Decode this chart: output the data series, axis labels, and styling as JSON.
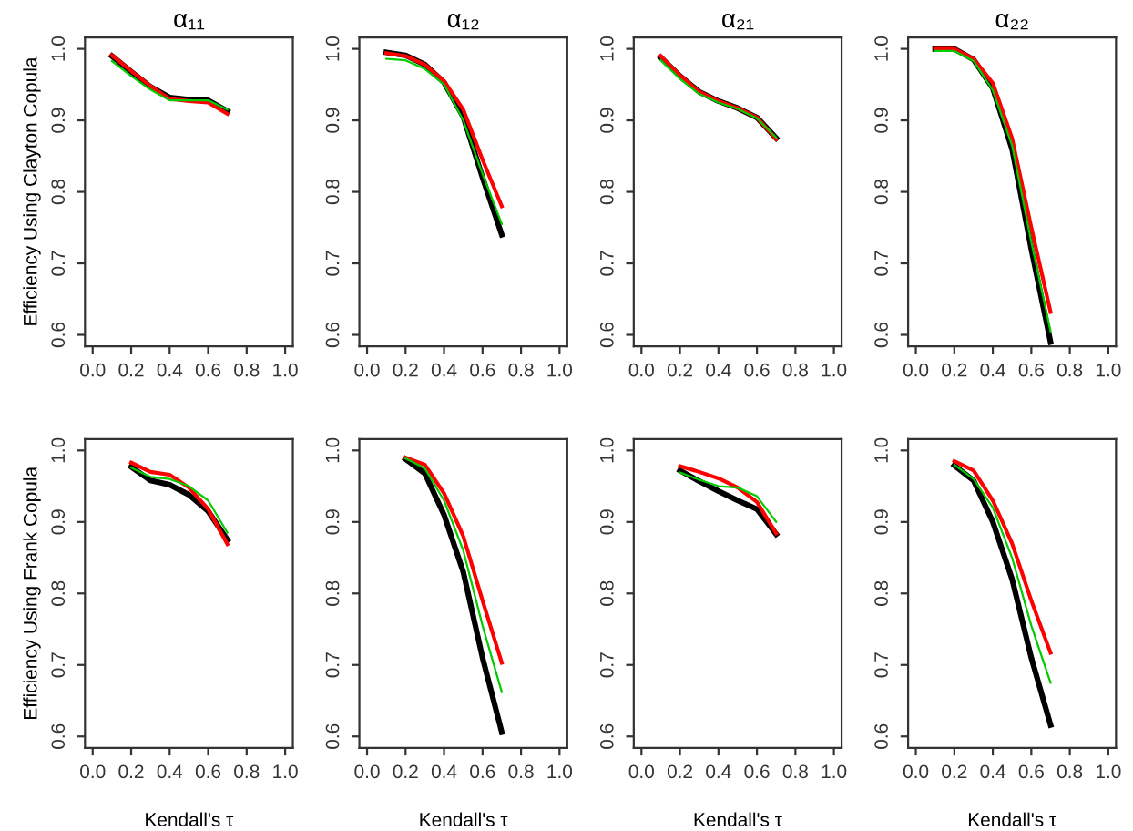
{
  "chart_data": [
    {
      "type": "line",
      "title": "α₁₁",
      "ylabel": "Efficiency Using Clayton Copula",
      "x": [
        0.1,
        0.2,
        0.3,
        0.4,
        0.5,
        0.6,
        0.7
      ],
      "xlim": [
        -0.04,
        1.04
      ],
      "ylim": [
        0.584,
        1.016
      ],
      "xticks": [
        {
          "value": 0,
          "label": "0.0"
        },
        {
          "value": 0.2,
          "label": "0.2"
        },
        {
          "value": 0.4,
          "label": "0.4"
        },
        {
          "value": 0.6,
          "label": "0.6"
        },
        {
          "value": 0.8,
          "label": "0.8"
        },
        {
          "value": 1,
          "label": "1.0"
        }
      ],
      "yticks": [
        {
          "value": 0.6,
          "label": "0.6"
        },
        {
          "value": 0.7,
          "label": "0.7"
        },
        {
          "value": 0.8,
          "label": "0.8"
        },
        {
          "value": 0.9,
          "label": "0.9"
        },
        {
          "value": 1,
          "label": "1.0"
        }
      ],
      "series": [
        {
          "color": "#000000",
          "values": [
            0.99,
            0.968,
            0.947,
            0.932,
            0.929,
            0.928,
            0.913
          ]
        },
        {
          "color": "#ff0000",
          "values": [
            0.991,
            0.969,
            0.948,
            0.93,
            0.927,
            0.925,
            0.909
          ]
        },
        {
          "color": "#00cc00",
          "values": [
            0.983,
            0.962,
            0.943,
            0.928,
            0.928,
            0.928,
            0.915
          ]
        }
      ]
    },
    {
      "type": "line",
      "title": "α₁₂",
      "x": [
        0.1,
        0.2,
        0.3,
        0.4,
        0.5,
        0.6,
        0.7
      ],
      "xlim": [
        -0.04,
        1.04
      ],
      "ylim": [
        0.584,
        1.016
      ],
      "xticks": [
        {
          "value": 0,
          "label": "0.0"
        },
        {
          "value": 0.2,
          "label": "0.2"
        },
        {
          "value": 0.4,
          "label": "0.4"
        },
        {
          "value": 0.6,
          "label": "0.6"
        },
        {
          "value": 0.8,
          "label": "0.8"
        },
        {
          "value": 1,
          "label": "1.0"
        }
      ],
      "yticks": [
        {
          "value": 0.6,
          "label": "0.6"
        },
        {
          "value": 0.7,
          "label": "0.7"
        },
        {
          "value": 0.8,
          "label": "0.8"
        },
        {
          "value": 0.9,
          "label": "0.9"
        },
        {
          "value": 1,
          "label": "1.0"
        }
      ],
      "series": [
        {
          "color": "#000000",
          "values": [
            0.995,
            0.991,
            0.978,
            0.953,
            0.905,
            0.82,
            0.74
          ]
        },
        {
          "color": "#ff0000",
          "values": [
            0.994,
            0.99,
            0.978,
            0.955,
            0.915,
            0.845,
            0.78
          ]
        },
        {
          "color": "#00cc00",
          "values": [
            0.986,
            0.984,
            0.972,
            0.95,
            0.9,
            0.825,
            0.755
          ]
        }
      ]
    },
    {
      "type": "line",
      "title": "α₂₁",
      "x": [
        0.1,
        0.2,
        0.3,
        0.4,
        0.5,
        0.6,
        0.7
      ],
      "xlim": [
        -0.04,
        1.04
      ],
      "ylim": [
        0.584,
        1.016
      ],
      "xticks": [
        {
          "value": 0,
          "label": "0.0"
        },
        {
          "value": 0.2,
          "label": "0.2"
        },
        {
          "value": 0.4,
          "label": "0.4"
        },
        {
          "value": 0.6,
          "label": "0.6"
        },
        {
          "value": 0.8,
          "label": "0.8"
        },
        {
          "value": 1,
          "label": "1.0"
        }
      ],
      "yticks": [
        {
          "value": 0.6,
          "label": "0.6"
        },
        {
          "value": 0.7,
          "label": "0.7"
        },
        {
          "value": 0.8,
          "label": "0.8"
        },
        {
          "value": 0.9,
          "label": "0.9"
        },
        {
          "value": 1,
          "label": "1.0"
        }
      ],
      "series": [
        {
          "color": "#000000",
          "values": [
            0.988,
            0.962,
            0.94,
            0.927,
            0.917,
            0.904,
            0.875
          ]
        },
        {
          "color": "#ff0000",
          "values": [
            0.99,
            0.963,
            0.94,
            0.927,
            0.917,
            0.904,
            0.874
          ]
        },
        {
          "color": "#00cc00",
          "values": [
            0.984,
            0.958,
            0.937,
            0.925,
            0.916,
            0.903,
            0.876
          ]
        }
      ]
    },
    {
      "type": "line",
      "title": "α₂₂",
      "x": [
        0.1,
        0.2,
        0.3,
        0.4,
        0.5,
        0.6,
        0.7
      ],
      "xlim": [
        -0.04,
        1.04
      ],
      "ylim": [
        0.584,
        1.016
      ],
      "xticks": [
        {
          "value": 0,
          "label": "0.0"
        },
        {
          "value": 0.2,
          "label": "0.2"
        },
        {
          "value": 0.4,
          "label": "0.4"
        },
        {
          "value": 0.6,
          "label": "0.6"
        },
        {
          "value": 0.8,
          "label": "0.8"
        },
        {
          "value": 1,
          "label": "1.0"
        }
      ],
      "yticks": [
        {
          "value": 0.6,
          "label": "0.6"
        },
        {
          "value": 0.7,
          "label": "0.7"
        },
        {
          "value": 0.8,
          "label": "0.8"
        },
        {
          "value": 0.9,
          "label": "0.9"
        },
        {
          "value": 1,
          "label": "1.0"
        }
      ],
      "series": [
        {
          "color": "#000000",
          "values": [
            1.0,
            1.0,
            0.985,
            0.945,
            0.86,
            0.72,
            0.59
          ]
        },
        {
          "color": "#ff0000",
          "values": [
            1.0,
            1.0,
            0.986,
            0.952,
            0.875,
            0.75,
            0.632
          ]
        },
        {
          "color": "#00cc00",
          "values": [
            0.997,
            0.997,
            0.983,
            0.942,
            0.865,
            0.73,
            0.605
          ]
        }
      ]
    },
    {
      "type": "line",
      "ylabel": "Efficiency Using Frank Copula",
      "xlabel": "Kendall's τ",
      "x": [
        0.2,
        0.3,
        0.4,
        0.5,
        0.6,
        0.7
      ],
      "xlim": [
        -0.04,
        1.04
      ],
      "ylim": [
        0.584,
        1.016
      ],
      "xticks": [
        {
          "value": 0,
          "label": "0.0"
        },
        {
          "value": 0.2,
          "label": "0.2"
        },
        {
          "value": 0.4,
          "label": "0.4"
        },
        {
          "value": 0.6,
          "label": "0.6"
        },
        {
          "value": 0.8,
          "label": "0.8"
        },
        {
          "value": 1,
          "label": "1.0"
        }
      ],
      "yticks": [
        {
          "value": 0.6,
          "label": "0.6"
        },
        {
          "value": 0.7,
          "label": "0.7"
        },
        {
          "value": 0.8,
          "label": "0.8"
        },
        {
          "value": 0.9,
          "label": "0.9"
        },
        {
          "value": 1,
          "label": "1.0"
        }
      ],
      "series": [
        {
          "color": "#000000",
          "values": [
            0.977,
            0.958,
            0.952,
            0.938,
            0.915,
            0.875
          ]
        },
        {
          "color": "#ff0000",
          "values": [
            0.983,
            0.97,
            0.966,
            0.948,
            0.918,
            0.869
          ]
        },
        {
          "color": "#00cc00",
          "values": [
            0.976,
            0.963,
            0.96,
            0.95,
            0.93,
            0.885
          ]
        }
      ]
    },
    {
      "type": "line",
      "xlabel": "Kendall's τ",
      "x": [
        0.2,
        0.3,
        0.4,
        0.5,
        0.6,
        0.7
      ],
      "xlim": [
        -0.04,
        1.04
      ],
      "ylim": [
        0.584,
        1.016
      ],
      "xticks": [
        {
          "value": 0,
          "label": "0.0"
        },
        {
          "value": 0.2,
          "label": "0.2"
        },
        {
          "value": 0.4,
          "label": "0.4"
        },
        {
          "value": 0.6,
          "label": "0.6"
        },
        {
          "value": 0.8,
          "label": "0.8"
        },
        {
          "value": 1,
          "label": "1.0"
        }
      ],
      "yticks": [
        {
          "value": 0.6,
          "label": "0.6"
        },
        {
          "value": 0.7,
          "label": "0.7"
        },
        {
          "value": 0.8,
          "label": "0.8"
        },
        {
          "value": 0.9,
          "label": "0.9"
        },
        {
          "value": 1,
          "label": "1.0"
        }
      ],
      "series": [
        {
          "color": "#000000",
          "values": [
            0.988,
            0.968,
            0.91,
            0.83,
            0.71,
            0.606
          ]
        },
        {
          "color": "#ff0000",
          "values": [
            0.99,
            0.98,
            0.94,
            0.88,
            0.79,
            0.703
          ]
        },
        {
          "color": "#00cc00",
          "values": [
            0.989,
            0.975,
            0.93,
            0.86,
            0.755,
            0.662
          ]
        }
      ]
    },
    {
      "type": "line",
      "xlabel": "Kendall's τ",
      "x": [
        0.2,
        0.3,
        0.4,
        0.5,
        0.6,
        0.7
      ],
      "xlim": [
        -0.04,
        1.04
      ],
      "ylim": [
        0.584,
        1.016
      ],
      "xticks": [
        {
          "value": 0,
          "label": "0.0"
        },
        {
          "value": 0.2,
          "label": "0.2"
        },
        {
          "value": 0.4,
          "label": "0.4"
        },
        {
          "value": 0.6,
          "label": "0.6"
        },
        {
          "value": 0.8,
          "label": "0.8"
        },
        {
          "value": 1,
          "label": "1.0"
        }
      ],
      "yticks": [
        {
          "value": 0.6,
          "label": "0.6"
        },
        {
          "value": 0.7,
          "label": "0.7"
        },
        {
          "value": 0.8,
          "label": "0.8"
        },
        {
          "value": 0.9,
          "label": "0.9"
        },
        {
          "value": 1,
          "label": "1.0"
        }
      ],
      "series": [
        {
          "color": "#000000",
          "values": [
            0.972,
            0.957,
            0.943,
            0.93,
            0.918,
            0.883
          ]
        },
        {
          "color": "#ff0000",
          "values": [
            0.978,
            0.97,
            0.961,
            0.948,
            0.928,
            0.884
          ]
        },
        {
          "color": "#00cc00",
          "values": [
            0.969,
            0.959,
            0.95,
            0.948,
            0.936,
            0.9
          ]
        }
      ]
    },
    {
      "type": "line",
      "xlabel": "Kendall's τ",
      "x": [
        0.2,
        0.3,
        0.4,
        0.5,
        0.6,
        0.7
      ],
      "xlim": [
        -0.04,
        1.04
      ],
      "ylim": [
        0.584,
        1.016
      ],
      "xticks": [
        {
          "value": 0,
          "label": "0.0"
        },
        {
          "value": 0.2,
          "label": "0.2"
        },
        {
          "value": 0.4,
          "label": "0.4"
        },
        {
          "value": 0.6,
          "label": "0.6"
        },
        {
          "value": 0.8,
          "label": "0.8"
        },
        {
          "value": 1,
          "label": "1.0"
        }
      ],
      "yticks": [
        {
          "value": 0.6,
          "label": "0.6"
        },
        {
          "value": 0.7,
          "label": "0.7"
        },
        {
          "value": 0.8,
          "label": "0.8"
        },
        {
          "value": 0.9,
          "label": "0.9"
        },
        {
          "value": 1,
          "label": "1.0"
        }
      ],
      "series": [
        {
          "color": "#000000",
          "values": [
            0.979,
            0.958,
            0.9,
            0.82,
            0.71,
            0.616
          ]
        },
        {
          "color": "#ff0000",
          "values": [
            0.985,
            0.972,
            0.93,
            0.87,
            0.79,
            0.717
          ]
        },
        {
          "color": "#00cc00",
          "values": [
            0.98,
            0.96,
            0.92,
            0.85,
            0.755,
            0.675
          ]
        }
      ]
    }
  ]
}
